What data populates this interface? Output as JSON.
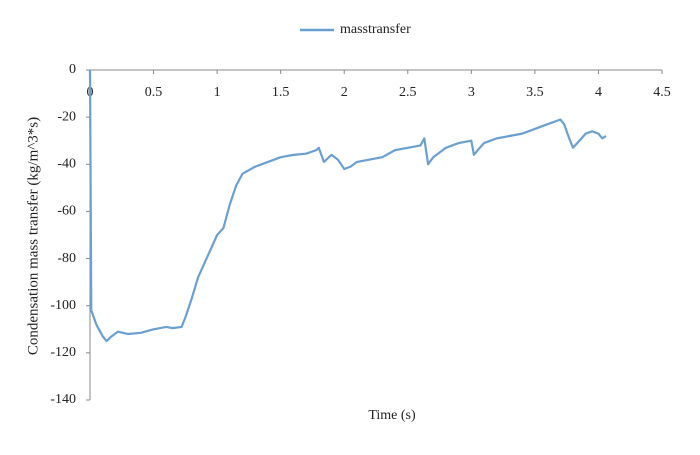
{
  "chart_data": {
    "type": "line",
    "x_label": "Time (s)",
    "y_label": "Condensation mass transfer (kg/m^3*s)",
    "xlim": [
      0,
      4.5
    ],
    "ylim": [
      -140,
      0
    ],
    "xticks": [
      0,
      0.5,
      1,
      1.5,
      2,
      2.5,
      3,
      3.5,
      4,
      4.5
    ],
    "yticks": [
      0,
      -20,
      -40,
      -60,
      -80,
      -100,
      -120,
      -140
    ],
    "grid": false,
    "legend": "top",
    "x": [
      0,
      0.01,
      0.05,
      0.1,
      0.13,
      0.17,
      0.22,
      0.3,
      0.4,
      0.5,
      0.6,
      0.65,
      0.72,
      0.75,
      0.8,
      0.85,
      0.9,
      0.95,
      1.0,
      1.05,
      1.1,
      1.15,
      1.2,
      1.3,
      1.4,
      1.5,
      1.6,
      1.7,
      1.78,
      1.8,
      1.84,
      1.9,
      1.95,
      2.0,
      2.05,
      2.1,
      2.2,
      2.3,
      2.4,
      2.5,
      2.6,
      2.63,
      2.66,
      2.7,
      2.8,
      2.9,
      3.0,
      3.02,
      3.05,
      3.1,
      3.2,
      3.3,
      3.4,
      3.5,
      3.6,
      3.65,
      3.7,
      3.73,
      3.77,
      3.8,
      3.85,
      3.9,
      3.95,
      4.0,
      4.03,
      4.06
    ],
    "series": [
      {
        "name": "masstransfer",
        "color": "#6a9fd2",
        "values": [
          0,
          -102,
          -108,
          -113,
          -115,
          -113,
          -111,
          -112,
          -111.5,
          -110,
          -109,
          -109.5,
          -109,
          -105,
          -97,
          -88,
          -82,
          -76,
          -70,
          -67,
          -57,
          -49,
          -44,
          -41,
          -39,
          -37,
          -36,
          -35.5,
          -34,
          -33,
          -39,
          -36,
          -38,
          -42,
          -41,
          -39,
          -38,
          -37,
          -34,
          -33,
          -32,
          -29,
          -40,
          -37,
          -33,
          -31,
          -30,
          -36,
          -34,
          -31,
          -29,
          -28,
          -27,
          -25,
          -23,
          -22,
          -21,
          -23,
          -29,
          -33,
          -30,
          -27,
          -26,
          -27,
          -29,
          -28
        ]
      }
    ]
  }
}
